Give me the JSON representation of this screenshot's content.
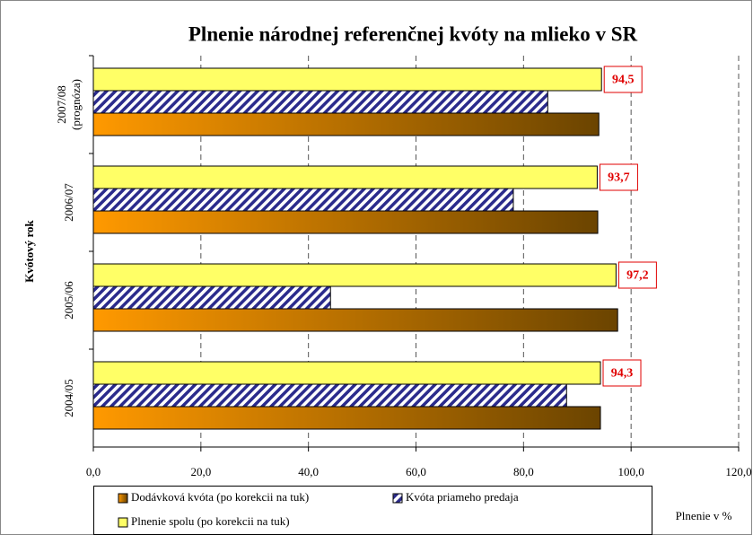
{
  "chart_data": {
    "type": "hbar",
    "title": "Plnenie národnej referenčnej kvóty na mlieko v SR",
    "y_label": "Kvótový rok",
    "x_label": "Plnenie v %",
    "categories": [
      "2004/05",
      "2005/06",
      "2006/07",
      "2007/08\n(prognóza)"
    ],
    "series": [
      {
        "name": "Dodávková kvóta (po korekcii na tuk)",
        "color": "#ff9900",
        "gradient_to": "#6b4400",
        "values": [
          94.3,
          97.5,
          93.8,
          94.0
        ]
      },
      {
        "name": "Kvóta priameho predaja",
        "color": "#2b2b8c",
        "pattern": "hatch",
        "values": [
          88.0,
          44.1,
          78.1,
          84.5
        ]
      },
      {
        "name": "Plnenie spolu (po korekcii na tuk)",
        "color": "#ffff66",
        "values": [
          94.3,
          97.2,
          93.7,
          94.5
        ],
        "value_labels": [
          "94,3",
          "97,2",
          "93,7",
          "94,5"
        ]
      }
    ],
    "xlim": [
      0,
      120
    ],
    "xticks": [
      {
        "value": 0,
        "label": "0,0"
      },
      {
        "value": 20,
        "label": "20,0"
      },
      {
        "value": 40,
        "label": "40,0"
      },
      {
        "value": 60,
        "label": "60,0"
      },
      {
        "value": 80,
        "label": "80,0"
      },
      {
        "value": 100,
        "label": "100,0"
      },
      {
        "value": 120,
        "label": "120,0"
      }
    ],
    "grid": true
  }
}
